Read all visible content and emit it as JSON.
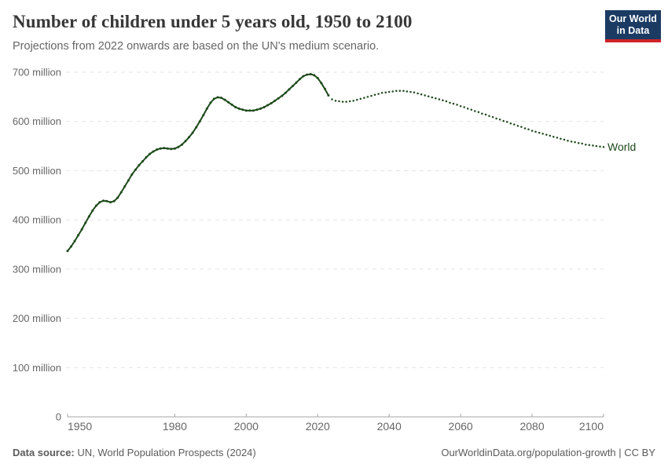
{
  "header": {
    "title": "Number of children under 5 years old, 1950 to 2100",
    "subtitle": "Projections from 2022 onwards are based on the UN's medium scenario."
  },
  "logo": {
    "line1": "Our World",
    "line2": "in Data",
    "bg_color": "#1b3b63",
    "bar_color": "#cf2329",
    "text_color": "#ffffff"
  },
  "chart_data": {
    "type": "line",
    "title": "Number of children under 5 years old, 1950 to 2100",
    "subtitle": "Projections from 2022 onwards are based on the UN's medium scenario.",
    "entity_label": "World",
    "xlabel": "",
    "ylabel": "",
    "unit": "million",
    "xlim": [
      1950,
      2100
    ],
    "ylim": [
      0,
      700
    ],
    "grid": true,
    "legend_position": "line-end-label",
    "x_ticks": [
      1950,
      1980,
      2000,
      2020,
      2040,
      2060,
      2080,
      2100
    ],
    "y_ticks": [
      {
        "value": 0,
        "label": "0"
      },
      {
        "value": 100,
        "label": "100 million"
      },
      {
        "value": 200,
        "label": "200 million"
      },
      {
        "value": 300,
        "label": "300 million"
      },
      {
        "value": 400,
        "label": "400 million"
      },
      {
        "value": 500,
        "label": "500 million"
      },
      {
        "value": 600,
        "label": "600 million"
      },
      {
        "value": 700,
        "label": "700 million"
      }
    ],
    "colors": {
      "line": "#1d4a1a",
      "grid": "#e3e3e3",
      "axis": "#a6a6a6",
      "tick_label": "#666666"
    },
    "series": [
      {
        "name": "World (observed)",
        "style": "solid",
        "start_year": 1950,
        "values": [
          337,
          346,
          357,
          369,
          381,
          394,
          407,
          419,
          429,
          436,
          439,
          438,
          436,
          438,
          445,
          456,
          468,
          480,
          492,
          502,
          511,
          519,
          527,
          534,
          539,
          543,
          545,
          546,
          545,
          544,
          545,
          548,
          553,
          560,
          568,
          577,
          588,
          600,
          613,
          626,
          638,
          646,
          649,
          648,
          644,
          639,
          634,
          629,
          626,
          624,
          622,
          622,
          622,
          624,
          626,
          629,
          633,
          637,
          642,
          647,
          652,
          658,
          665,
          672,
          679,
          686,
          692,
          695,
          696,
          694,
          688,
          678,
          666,
          653
        ]
      },
      {
        "name": "World (projection, UN medium scenario)",
        "style": "dotted",
        "start_year": 2023,
        "values": [
          653,
          645,
          642,
          641,
          640,
          640,
          641,
          642,
          644,
          646,
          648,
          650,
          652,
          654,
          656,
          658,
          659,
          660,
          661,
          662,
          662,
          662,
          661,
          660,
          659,
          657,
          655,
          653,
          651,
          649,
          647,
          645,
          643,
          641,
          638,
          636,
          634,
          631,
          629,
          626,
          624,
          621,
          619,
          616,
          614,
          611,
          609,
          606,
          604,
          601,
          599,
          596,
          594,
          591,
          589,
          586,
          584,
          581,
          579,
          577,
          575,
          573,
          571,
          569,
          567,
          565,
          563,
          561,
          559,
          558,
          556,
          555,
          553,
          552,
          551,
          550,
          549,
          548
        ]
      }
    ]
  },
  "footer": {
    "source_label": "Data source:",
    "source_text": " UN, World Population Prospects (2024)",
    "right_text": "OurWorldinData.org/population-growth | CC BY"
  }
}
